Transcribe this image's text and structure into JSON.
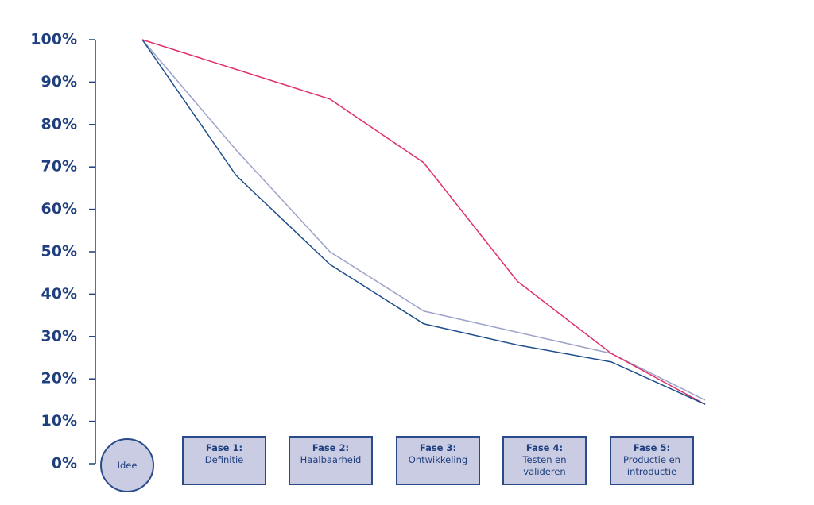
{
  "chart_data": {
    "type": "line",
    "x": [
      0,
      1,
      2,
      3,
      4,
      5,
      6
    ],
    "xlim": [
      0,
      6
    ],
    "series": [
      {
        "color": "#9da3c9",
        "values": [
          100,
          74,
          50,
          36,
          31,
          26,
          15
        ]
      },
      {
        "color": "#e0306a",
        "values": [
          100,
          93,
          86,
          71,
          43,
          26,
          14
        ]
      },
      {
        "color": "#1f4e8c",
        "values": [
          100,
          68,
          47,
          33,
          28,
          24,
          14
        ]
      }
    ],
    "ylim": [
      0,
      100
    ],
    "yticks": [
      {
        "value": 0,
        "label": "0%"
      },
      {
        "value": 10,
        "label": "10%"
      },
      {
        "value": 20,
        "label": "20%"
      },
      {
        "value": 30,
        "label": "30%"
      },
      {
        "value": 40,
        "label": "40%"
      },
      {
        "value": 50,
        "label": "50%"
      },
      {
        "value": 60,
        "label": "60%"
      },
      {
        "value": 70,
        "label": "70%"
      },
      {
        "value": 80,
        "label": "80%"
      },
      {
        "value": 90,
        "label": "90%"
      },
      {
        "value": 100,
        "label": "100%"
      }
    ],
    "stages": [
      {
        "label": "Idee"
      },
      {
        "title": "Fase 1:",
        "label": "Definitie"
      },
      {
        "title": "Fase 2:",
        "label": "Haalbaarheid"
      },
      {
        "title": "Fase 3:",
        "label": "Ontwikkeling"
      },
      {
        "title": "Fase 4:",
        "label": "Testen en valideren"
      },
      {
        "title": "Fase 5:",
        "label": "Productie en introductie"
      }
    ]
  }
}
